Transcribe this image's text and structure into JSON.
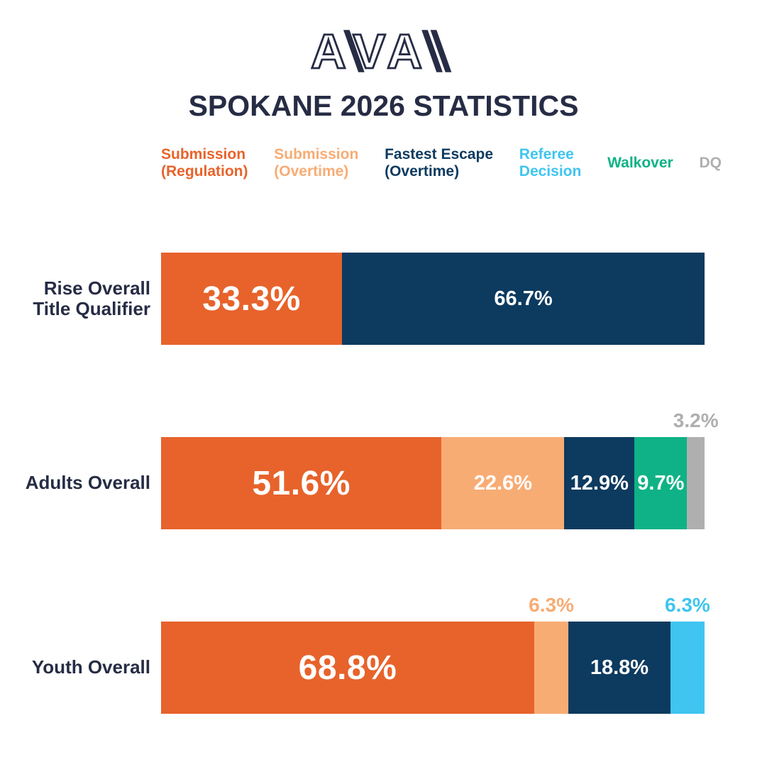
{
  "logo": {
    "name": "AVA",
    "letters": [
      "A",
      "V",
      "A"
    ]
  },
  "title": "SPOKANE 2026 STATISTICS",
  "colors": {
    "orange": "#E7632B",
    "light_orange": "#F7AC74",
    "navy": "#0D3A5F",
    "cyan": "#3FC5EF",
    "green": "#0FB286",
    "gray": "#AFAFAF",
    "dark": "#272C45",
    "white": "#FFFFFF"
  },
  "legend": {
    "items": [
      {
        "lines": [
          "Submission",
          "(Regulation)"
        ],
        "color_key": "orange"
      },
      {
        "lines": [
          "Submission",
          "(Overtime)"
        ],
        "color_key": "light_orange"
      },
      {
        "lines": [
          "Fastest Escape",
          "(Overtime)"
        ],
        "color_key": "navy"
      },
      {
        "lines": [
          "Referee",
          "Decision"
        ],
        "color_key": "cyan"
      },
      {
        "lines": [
          "Walkover"
        ],
        "color_key": "green"
      },
      {
        "lines": [
          "DQ"
        ],
        "color_key": "gray"
      }
    ]
  },
  "chart_data": {
    "type": "bar",
    "stacked": true,
    "orientation": "horizontal",
    "unit": "%",
    "xlim": [
      0,
      100
    ],
    "grid": false,
    "legend_position": "top",
    "title": "SPOKANE 2026 STATISTICS",
    "categories": [
      "Rise Overall Title Qualifier",
      "Adults Overall",
      "Youth Overall"
    ],
    "series": [
      {
        "name": "Submission (Regulation)",
        "color_key": "orange",
        "values": [
          33.3,
          51.6,
          68.8
        ]
      },
      {
        "name": "Submission (Overtime)",
        "color_key": "light_orange",
        "values": [
          0,
          22.6,
          6.3
        ]
      },
      {
        "name": "Fastest Escape (Overtime)",
        "color_key": "navy",
        "values": [
          66.7,
          12.9,
          18.8
        ]
      },
      {
        "name": "Referee Decision",
        "color_key": "cyan",
        "values": [
          0,
          0,
          6.3
        ]
      },
      {
        "name": "Walkover",
        "color_key": "green",
        "values": [
          0,
          9.7,
          0
        ]
      },
      {
        "name": "DQ",
        "color_key": "gray",
        "values": [
          0,
          3.2,
          0
        ]
      }
    ],
    "rows": [
      {
        "label_lines": [
          "Rise Overall",
          "Title Qualifier"
        ],
        "segments": [
          {
            "series": "Submission (Regulation)",
            "value": 33.3,
            "text": "33.3%",
            "color_key": "orange",
            "label_style": "big"
          },
          {
            "series": "Fastest Escape (Overtime)",
            "value": 66.7,
            "text": "66.7%",
            "color_key": "navy",
            "label_style": "inside"
          }
        ]
      },
      {
        "label_lines": [
          "Adults Overall"
        ],
        "segments": [
          {
            "series": "Submission (Regulation)",
            "value": 51.6,
            "text": "51.6%",
            "color_key": "orange",
            "label_style": "big"
          },
          {
            "series": "Submission (Overtime)",
            "value": 22.6,
            "text": "22.6%",
            "color_key": "light_orange",
            "label_style": "inside"
          },
          {
            "series": "Fastest Escape (Overtime)",
            "value": 12.9,
            "text": "12.9%",
            "color_key": "navy",
            "label_style": "inside"
          },
          {
            "series": "Walkover",
            "value": 9.7,
            "text": "9.7%",
            "color_key": "green",
            "label_style": "inside"
          },
          {
            "series": "DQ",
            "value": 3.2,
            "text": "3.2%",
            "color_key": "gray",
            "label_style": "above"
          }
        ]
      },
      {
        "label_lines": [
          "Youth Overall"
        ],
        "segments": [
          {
            "series": "Submission (Regulation)",
            "value": 68.8,
            "text": "68.8%",
            "color_key": "orange",
            "label_style": "big"
          },
          {
            "series": "Submission (Overtime)",
            "value": 6.3,
            "text": "6.3%",
            "color_key": "light_orange",
            "label_style": "above"
          },
          {
            "series": "Fastest Escape (Overtime)",
            "value": 18.8,
            "text": "18.8%",
            "color_key": "navy",
            "label_style": "inside"
          },
          {
            "series": "Referee Decision",
            "value": 6.3,
            "text": "6.3%",
            "color_key": "cyan",
            "label_style": "above"
          }
        ]
      }
    ]
  }
}
